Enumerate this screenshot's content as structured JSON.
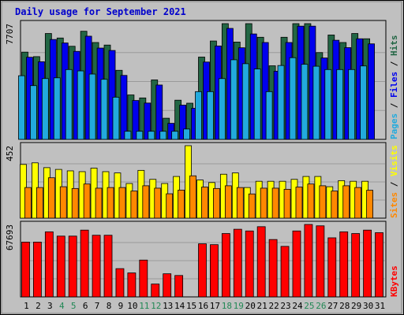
{
  "chart_data": {
    "type": "bar",
    "title": "Daily usage for September 2021",
    "colors": {
      "background": "#c0c0c0",
      "title": "#0000cc",
      "hits": "#226644",
      "files": "#0000ee",
      "pages": "#22aadd",
      "visits": "#ffff00",
      "sites": "#ff8800",
      "kbytes": "#ff0000",
      "weekend_label": "#228855",
      "weekday_label": "#000000"
    },
    "categories": [
      "1",
      "2",
      "3",
      "4",
      "5",
      "6",
      "7",
      "8",
      "9",
      "10",
      "11",
      "12",
      "13",
      "14",
      "15",
      "16",
      "17",
      "18",
      "19",
      "20",
      "21",
      "22",
      "23",
      "24",
      "25",
      "26",
      "27",
      "28",
      "29",
      "30",
      "31"
    ],
    "weekend_days": [
      "4",
      "5",
      "11",
      "12",
      "18",
      "19",
      "25",
      "26"
    ],
    "panels": [
      {
        "id": "hits_panel",
        "max_label": "7707",
        "ylim": [
          0,
          7707
        ],
        "right_label_parts": [
          {
            "text": "Pages",
            "color": "#22aadd"
          },
          {
            "text": " / ",
            "color": "#000000"
          },
          {
            "text": "Files",
            "color": "#0000ee"
          },
          {
            "text": " / ",
            "color": "#000000"
          },
          {
            "text": "Hits",
            "color": "#226644"
          }
        ],
        "series": [
          {
            "name": "Hits",
            "color": "#226644",
            "values": [
              5810,
              5510,
              7050,
              6750,
              6200,
              7200,
              6450,
              6280,
              4600,
              2960,
              2760,
              3960,
              1410,
              2610,
              2410,
              5480,
              6550,
              7707,
              6480,
              7707,
              6800,
              4900,
              6800,
              7707,
              7707,
              5780,
              6950,
              6450,
              7050,
              6700,
              0
            ]
          },
          {
            "name": "Files",
            "color": "#0000ee",
            "values": [
              5470,
              5170,
              6650,
              6420,
              5860,
              6870,
              6080,
              5920,
              4260,
              2590,
              2420,
              3620,
              1070,
              2280,
              2070,
              5150,
              6220,
              7390,
              6100,
              7020,
              6450,
              4540,
              6450,
              7540,
              7540,
              5420,
              6600,
              6110,
              6700,
              6360,
              0
            ]
          },
          {
            "name": "Pages",
            "color": "#22aadd",
            "values": [
              4240,
              3580,
              4050,
              4100,
              4650,
              4560,
              4350,
              4000,
              2810,
              540,
              540,
              540,
              540,
              540,
              690,
              3180,
              3180,
              4050,
              5300,
              5040,
              4690,
              3180,
              4920,
              5440,
              5000,
              4870,
              4650,
              4650,
              4650,
              4890,
              0
            ]
          }
        ]
      },
      {
        "id": "visits_panel",
        "max_label": "452",
        "ylim": [
          0,
          452
        ],
        "right_label_parts": [
          {
            "text": "Sites",
            "color": "#ff8800"
          },
          {
            "text": " / ",
            "color": "#000000"
          },
          {
            "text": "Visits",
            "color": "#ffff00"
          }
        ],
        "series": [
          {
            "name": "Visits",
            "color": "#ffff00",
            "values": [
              335,
              345,
              315,
              304,
              295,
              290,
              312,
              290,
              282,
              216,
              298,
              242,
              216,
              260,
              452,
              238,
              222,
              274,
              282,
              191,
              230,
              230,
              230,
              242,
              260,
              260,
              196,
              234,
              230,
              230,
              0
            ]
          },
          {
            "name": "Sites",
            "color": "#ff8800",
            "values": [
              191,
              191,
              252,
              196,
              185,
              213,
              187,
              191,
              191,
              169,
              202,
              187,
              152,
              175,
              264,
              194,
              185,
              202,
              191,
              151,
              187,
              187,
              180,
              194,
              213,
              202,
              169,
              202,
              191,
              174,
              0
            ]
          }
        ]
      },
      {
        "id": "kbytes_panel",
        "max_label": "67693",
        "ylim": [
          0,
          67693
        ],
        "right_label_parts": [
          {
            "text": "KBytes",
            "color": "#ff0000"
          }
        ],
        "series": [
          {
            "name": "KBytes",
            "color": "#ff0000",
            "values": [
              51200,
              51200,
              60800,
              56800,
              56800,
              62400,
              57600,
              57600,
              26400,
              22400,
              34400,
              12000,
              21600,
              20000,
              0,
              49600,
              48800,
              59200,
              63200,
              61600,
              65600,
              53600,
              47200,
              61600,
              67693,
              66400,
              55200,
              60800,
              59200,
              62400,
              60000
            ]
          }
        ]
      }
    ]
  }
}
